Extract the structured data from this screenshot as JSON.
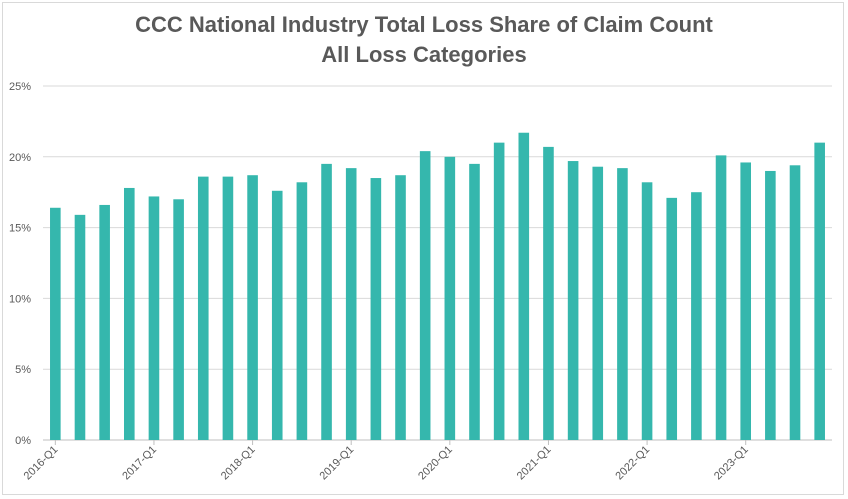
{
  "chart_data": {
    "type": "bar",
    "title": "CCC National Industry Total Loss Share of Claim Count",
    "subtitle": "All Loss Categories",
    "xlabel": "",
    "ylabel": "",
    "ylim": [
      0,
      25
    ],
    "yticks": [
      "0%",
      "5%",
      "10%",
      "15%",
      "20%",
      "25%"
    ],
    "ytick_values": [
      0,
      5,
      10,
      15,
      20,
      25
    ],
    "grid": true,
    "legend": "none",
    "bar_color": "#35b7ad",
    "categories": [
      "2016-Q1",
      "2016-Q2",
      "2016-Q3",
      "2016-Q4",
      "2017-Q1",
      "2017-Q2",
      "2017-Q3",
      "2017-Q4",
      "2018-Q1",
      "2018-Q2",
      "2018-Q3",
      "2018-Q4",
      "2019-Q1",
      "2019-Q2",
      "2019-Q3",
      "2019-Q4",
      "2020-Q1",
      "2020-Q2",
      "2020-Q3",
      "2020-Q4",
      "2021-Q1",
      "2021-Q2",
      "2021-Q3",
      "2021-Q4",
      "2022-Q1",
      "2022-Q2",
      "2022-Q3",
      "2022-Q4",
      "2023-Q1",
      "2023-Q2",
      "2023-Q3",
      "2023-Q4"
    ],
    "visible_xtick_labels": [
      "2016-Q1",
      "2017-Q1",
      "2018-Q1",
      "2019-Q1",
      "2020-Q1",
      "2021-Q1",
      "2022-Q1",
      "2023-Q1"
    ],
    "values": [
      16.4,
      15.9,
      16.6,
      17.8,
      17.2,
      17.0,
      18.6,
      18.6,
      18.7,
      17.6,
      18.2,
      19.5,
      19.2,
      18.5,
      18.7,
      20.4,
      20.0,
      19.5,
      21.0,
      21.7,
      20.7,
      19.7,
      19.3,
      19.2,
      18.2,
      17.1,
      17.5,
      20.1,
      19.6,
      19.0,
      19.4,
      21.0
    ]
  }
}
